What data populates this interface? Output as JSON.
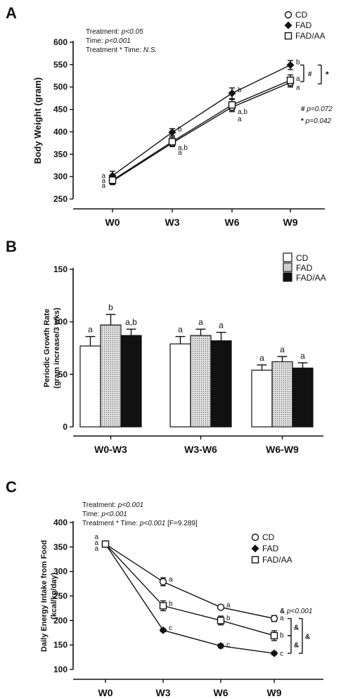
{
  "colors": {
    "ink": "#111111",
    "fad_fill": "#cfcfcf",
    "white": "#ffffff"
  },
  "chart_data": [
    {
      "panel": "A",
      "type": "line",
      "ylabel": "Body Weight (gram)",
      "categories": [
        "W0",
        "W3",
        "W6",
        "W9"
      ],
      "ylim": [
        250,
        600
      ],
      "yticks": [
        250,
        300,
        350,
        400,
        450,
        500,
        550,
        600
      ],
      "legend_position": "top-right",
      "stats_lines": [
        {
          "label": "Treatment: ",
          "value": "p<0.05"
        },
        {
          "label": "Time: ",
          "value": "p<0.001"
        },
        {
          "label": "Treatment * Time: ",
          "value": "N.S."
        }
      ],
      "series": [
        {
          "name": "CD",
          "marker": "open-circle",
          "values": [
            290,
            375,
            455,
            510
          ],
          "err": [
            8,
            8,
            10,
            10
          ]
        },
        {
          "name": "FAD",
          "marker": "filled-diamond",
          "values": [
            302,
            399,
            486,
            549
          ],
          "err": [
            10,
            8,
            12,
            10
          ]
        },
        {
          "name": "FAD/AA",
          "marker": "open-square",
          "values": [
            292,
            378,
            460,
            515
          ],
          "err": [
            8,
            10,
            12,
            12
          ]
        }
      ],
      "point_labels": [
        {
          "cat": 0,
          "y": 303,
          "text": "a"
        },
        {
          "cat": 0,
          "y": 292,
          "text": "a"
        },
        {
          "cat": 0,
          "y": 281,
          "text": "a"
        },
        {
          "cat": 1,
          "y": 407,
          "text": "b"
        },
        {
          "cat": 1,
          "y": 366,
          "text": "a,b"
        },
        {
          "cat": 1,
          "y": 355,
          "text": "a"
        },
        {
          "cat": 2,
          "y": 495,
          "text": "b"
        },
        {
          "cat": 2,
          "y": 446,
          "text": "a,b"
        },
        {
          "cat": 2,
          "y": 430,
          "text": "a"
        },
        {
          "cat": 3,
          "y": 557,
          "text": "b"
        },
        {
          "cat": 3,
          "y": 520,
          "text": "a"
        },
        {
          "cat": 3,
          "y": 500,
          "text": "a"
        }
      ],
      "brackets": [
        {
          "top": 549,
          "bottom": 512,
          "symbol": "#"
        },
        {
          "top": 549,
          "bottom": 507,
          "symbol": "*"
        }
      ],
      "notes": [
        {
          "symbol": "#",
          "text": "p=0.072"
        },
        {
          "symbol": "*",
          "text": "p=0.042"
        }
      ]
    },
    {
      "panel": "B",
      "type": "bar",
      "ylabel": "Periodic Growth Rate",
      "ylabel2": "(gram increase/3 wks)",
      "categories": [
        "W0-W3",
        "W3-W6",
        "W6-W9"
      ],
      "ylim": [
        0,
        150
      ],
      "yticks": [
        0,
        50,
        100,
        150
      ],
      "legend_position": "top-right",
      "series": [
        {
          "name": "CD",
          "fill": "white",
          "values": [
            77,
            79,
            54
          ],
          "err": [
            9,
            7,
            5
          ]
        },
        {
          "name": "FAD",
          "fill": "dotted",
          "values": [
            97,
            87,
            62
          ],
          "err": [
            10,
            6,
            5
          ]
        },
        {
          "name": "FAD/AA",
          "fill": "black",
          "values": [
            87,
            82,
            56
          ],
          "err": [
            6,
            8,
            5
          ]
        }
      ],
      "bar_labels": [
        [
          "a",
          "b",
          "a,b"
        ],
        [
          "a",
          "a",
          "a"
        ],
        [
          "a",
          "a",
          "a"
        ]
      ]
    },
    {
      "panel": "C",
      "type": "line",
      "ylabel": "Daily Energy Intake from Food",
      "ylabel2": "(kcal/kg/day)",
      "categories": [
        "W0",
        "W3",
        "W6",
        "W9"
      ],
      "ylim": [
        100,
        400
      ],
      "yticks": [
        100,
        150,
        200,
        250,
        300,
        350,
        400
      ],
      "legend_position": "top-right",
      "stats_lines": [
        {
          "label": "Treatment: ",
          "value": "p<0.001",
          "extra": ""
        },
        {
          "label": "Time: ",
          "value": "p<0.001",
          "extra": ""
        },
        {
          "label": "Treatment * Time: ",
          "value": "p<0.001",
          "extra": " [F=9.289]"
        }
      ],
      "series": [
        {
          "name": "CD",
          "marker": "open-circle",
          "values": [
            356,
            279,
            227,
            204
          ],
          "err": [
            3,
            8,
            4,
            6
          ]
        },
        {
          "name": "FAD",
          "marker": "filled-diamond",
          "values": [
            356,
            180,
            148,
            133
          ],
          "err": [
            3,
            3,
            4,
            3
          ]
        },
        {
          "name": "FAD/AA",
          "marker": "open-square",
          "values": [
            356,
            230,
            200,
            169
          ],
          "err": [
            3,
            10,
            9,
            10
          ]
        }
      ],
      "point_labels": [
        {
          "cat": 0,
          "y": 372,
          "text": "a"
        },
        {
          "cat": 0,
          "y": 360,
          "text": "a"
        },
        {
          "cat": 0,
          "y": 348,
          "text": "a"
        },
        {
          "cat": 1,
          "y": 285,
          "text": "a"
        },
        {
          "cat": 1,
          "y": 236,
          "text": "b"
        },
        {
          "cat": 1,
          "y": 186,
          "text": "c"
        },
        {
          "cat": 2,
          "y": 233,
          "text": "a"
        },
        {
          "cat": 2,
          "y": 206,
          "text": "b"
        },
        {
          "cat": 2,
          "y": 152,
          "text": "c"
        },
        {
          "cat": 3,
          "y": 206,
          "text": "a"
        },
        {
          "cat": 3,
          "y": 171,
          "text": "b"
        },
        {
          "cat": 3,
          "y": 134,
          "text": "c"
        }
      ],
      "brackets": [
        {
          "top": 204,
          "bottom": 169,
          "symbol": "&"
        },
        {
          "top": 169,
          "bottom": 133,
          "symbol": "&"
        },
        {
          "top": 204,
          "bottom": 133,
          "symbol": "&"
        }
      ],
      "notes": [
        {
          "symbol": "&",
          "text": "p<0.001"
        }
      ]
    }
  ]
}
